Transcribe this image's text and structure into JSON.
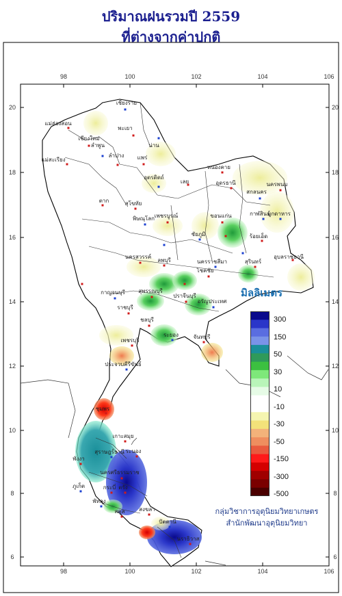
{
  "title_line1": "ปริมาณฝนรวมปี  2559",
  "title_line2": "ที่ต่างจากค่าปกติ",
  "axis": {
    "x_ticks": [
      "98",
      "100",
      "102",
      "104",
      "106"
    ],
    "y_ticks": [
      "20",
      "18",
      "16",
      "14",
      "12",
      "10",
      "8",
      "6"
    ]
  },
  "legend": {
    "title": "มิลลิเมตร",
    "labels": [
      "300",
      "150",
      "50",
      "30",
      "10",
      "-10",
      "-30",
      "-50",
      "-150",
      "-300",
      "-500"
    ],
    "colors": [
      "#0a0a8c",
      "#2a36c9",
      "#5a6de0",
      "#7a93e8",
      "#1a8f9a",
      "#2f9a5a",
      "#3cc040",
      "#7ee87a",
      "#b9f5b9",
      "#e6fbe6",
      "#ffffff",
      "#ffffff",
      "#f5f5b0",
      "#f3e27a",
      "#f3b27a",
      "#ef8e5f",
      "#e95a3e",
      "#ff1a1a",
      "#d40000",
      "#a00000",
      "#7a0000",
      "#4a0000"
    ]
  },
  "provinces": [
    "เชียงราย",
    "แม่ฮ่องสอน",
    "เชียงใหม่",
    "ลำพูน",
    "ลำปาง",
    "พะเยา",
    "น่าน",
    "แพร่",
    "แม่สะเรียง",
    "อุตรดิตถ์",
    "หนองคาย",
    "อุดรธานี",
    "สกลนคร",
    "นครพนม",
    "เลย",
    "มุกดาหาร",
    "ตาก",
    "สุโขทัย",
    "พิษณุโลก",
    "เพชรบูรณ์",
    "ขอนแก่น",
    "กาฬสินธุ์",
    "ร้อยเอ็ด",
    "อุบลราชธานี",
    "ชัยภูมิ",
    "นครสวรรค์",
    "ลพบุรี",
    "นครราชสีมา",
    "โชคชัย",
    "สุรินทร์",
    "กาญจนบุรี",
    "สุพรรณบุรี",
    "ปราจีนบุรี",
    "อรัญประเทศ",
    "ราชบุรี",
    "ชลบุรี",
    "ระยอง",
    "จันทบุรี",
    "เพชรบุรี",
    "ประจวบคีรีขันธ์",
    "ชุมพร",
    "ระนอง",
    "สุราษฎร์ธานี",
    "พังงา",
    "นครศรีธรรมราช",
    "ภูเก็ต",
    "กระบี่",
    "ตรัง",
    "พัทลุง",
    "สงขลา",
    "สตูล",
    "ปัตตานี",
    "นราธิวาส",
    "เกาะสมุย"
  ],
  "credit_line1": "กลุ่มวิชาการอุตุนิยมวิทยาเกษตร",
  "credit_line2": "สำนักพัฒนาอุตุนิยมวิทยา"
}
